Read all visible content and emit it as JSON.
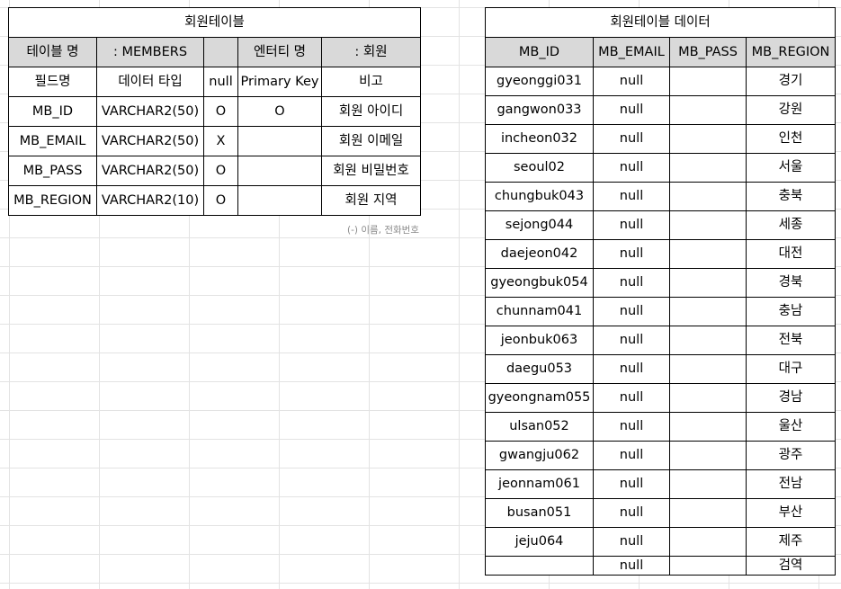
{
  "members_table": {
    "title": "회원테이블",
    "header": {
      "table_name_label": "테이블 명",
      "table_name_value": ":    MEMBERS",
      "entity_name_label": "엔터티 명",
      "entity_name_value": ":        회원"
    },
    "columns": [
      "필드명",
      "데이터 타입",
      "null",
      "Primary Key",
      "비고"
    ],
    "rows": [
      [
        "MB_ID",
        "VARCHAR2(50)",
        "O",
        "O",
        "회원 아이디"
      ],
      [
        "MB_EMAIL",
        "VARCHAR2(50)",
        "X",
        "",
        "회원 이메일"
      ],
      [
        "MB_PASS",
        "VARCHAR2(50)",
        "O",
        "",
        "회원 비밀번호"
      ],
      [
        "MB_REGION",
        "VARCHAR2(10)",
        "O",
        "",
        "회원 지역"
      ]
    ],
    "note": "(-) 이름, 전화번호"
  },
  "data_table": {
    "title": "회원테이블 데이터",
    "columns": [
      "MB_ID",
      "MB_EMAIL",
      "MB_PASS",
      "MB_REGION"
    ],
    "rows": [
      [
        "gyeonggi031",
        "null",
        "",
        "경기"
      ],
      [
        "gangwon033",
        "null",
        "",
        "강원"
      ],
      [
        "incheon032",
        "null",
        "",
        "인천"
      ],
      [
        "seoul02",
        "null",
        "",
        "서울"
      ],
      [
        "chungbuk043",
        "null",
        "",
        "충북"
      ],
      [
        "sejong044",
        "null",
        "",
        "세종"
      ],
      [
        "daejeon042",
        "null",
        "",
        "대전"
      ],
      [
        "gyeongbuk054",
        "null",
        "",
        "경북"
      ],
      [
        "chunnam041",
        "null",
        "",
        "충남"
      ],
      [
        "jeonbuk063",
        "null",
        "",
        "전북"
      ],
      [
        "daegu053",
        "null",
        "",
        "대구"
      ],
      [
        "gyeongnam055",
        "null",
        "",
        "경남"
      ],
      [
        "ulsan052",
        "null",
        "",
        "울산"
      ],
      [
        "gwangju062",
        "null",
        "",
        "광주"
      ],
      [
        "jeonnam061",
        "null",
        "",
        "전남"
      ],
      [
        "busan051",
        "null",
        "",
        "부산"
      ],
      [
        "jeju064",
        "null",
        "",
        "제주"
      ],
      [
        "",
        "null",
        "",
        "검역"
      ]
    ]
  }
}
